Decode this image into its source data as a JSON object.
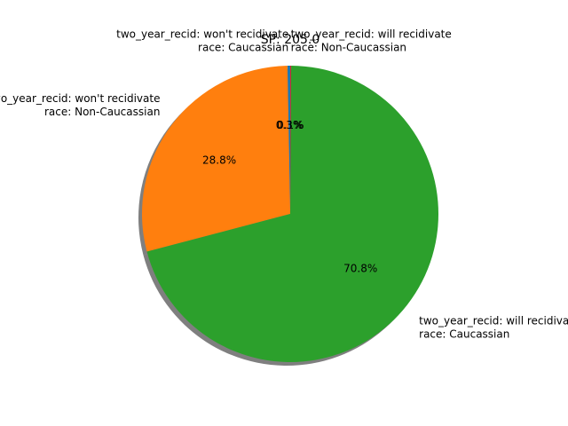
{
  "chart_data": {
    "type": "pie",
    "title": "SP: 205.0",
    "start_angle_deg": 90,
    "counterclock": true,
    "shadow": true,
    "slices": [
      {
        "label_lines": [
          "two_year_recid: won't recidivate",
          "race: Caucassian"
        ],
        "value": 0.3,
        "pct_label": "0.3%",
        "color": "#1f77b4"
      },
      {
        "label_lines": [
          "two_year_recid: won't recidivate",
          "race: Non-Caucassian"
        ],
        "value": 28.8,
        "pct_label": "28.8%",
        "color": "#ff7f0e"
      },
      {
        "label_lines": [
          "two_year_recid: will recidivate",
          "race: Caucassian"
        ],
        "value": 70.8,
        "pct_label": "70.8%",
        "color": "#2ca02c"
      },
      {
        "label_lines": [
          "two_year_recid: will recidivate",
          "race: Non-Caucassian"
        ],
        "value": 0.1,
        "pct_label": "0.1%",
        "color": "#d62728"
      }
    ]
  }
}
